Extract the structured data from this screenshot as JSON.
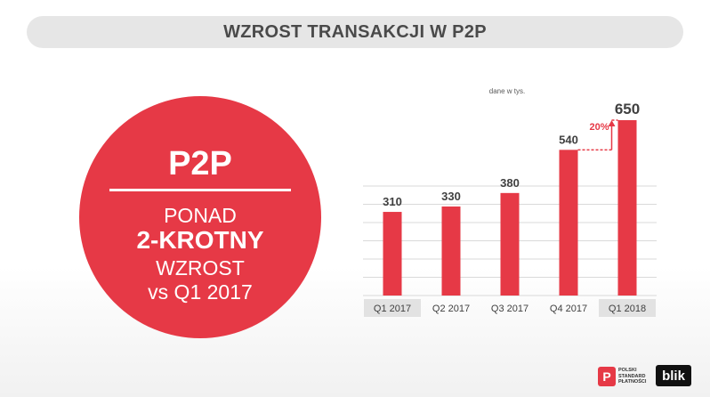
{
  "title": "WZROST TRANSAKCJI W P2P",
  "circle": {
    "heading": "P2P",
    "line1": "PONAD",
    "line2": "2-KROTNY",
    "line3": "WZROST",
    "line4": "vs Q1 2017"
  },
  "colors": {
    "accent": "#e63946",
    "title_bar": "#e6e6e6",
    "text": "#404040"
  },
  "chart_data": {
    "type": "bar",
    "note": "dane w tys.",
    "categories": [
      "Q1 2017",
      "Q2 2017",
      "Q3 2017",
      "Q4 2017",
      "Q1 2018"
    ],
    "values": [
      310,
      330,
      380,
      540,
      650
    ],
    "highlighted_categories": [
      "Q1 2017",
      "Q1 2018"
    ],
    "ylim": [
      0,
      650
    ],
    "grid": true,
    "annotation": {
      "text": "20%",
      "from": "Q4 2017",
      "to": "Q1 2018"
    }
  },
  "logos": {
    "psp_mark": "P",
    "psp_text": [
      "POLSKI",
      "STANDARD",
      "PŁATNOŚCI"
    ],
    "blik": "blik"
  }
}
